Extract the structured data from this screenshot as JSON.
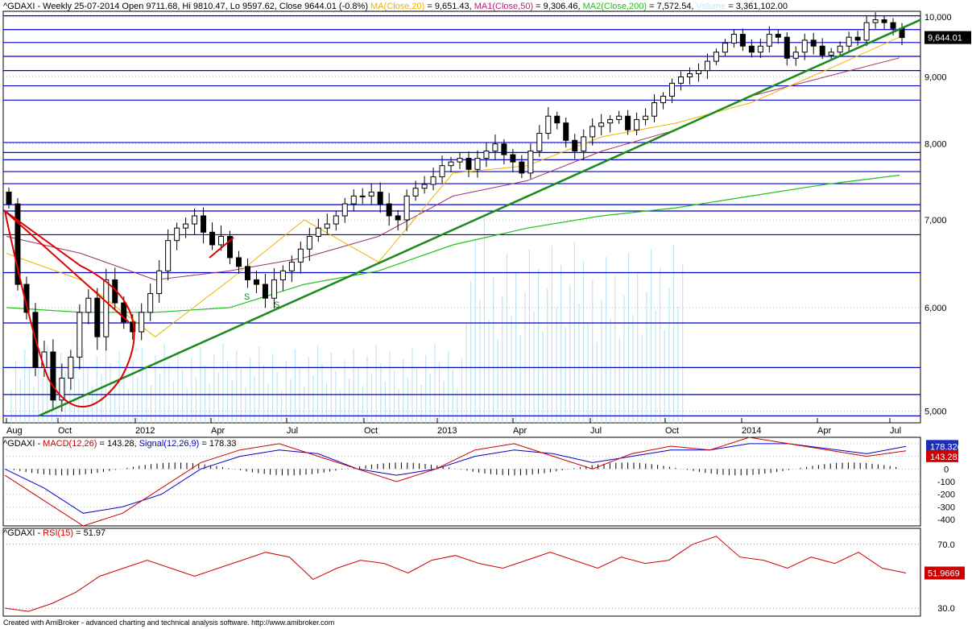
{
  "panels": {
    "price": {
      "header": [
        {
          "text": "^GDAXI - Weekly 25-07-2014 Open 9711.68, Hi 9810.47, Lo 9597.62, Close 9644.01 (-0.8%) ",
          "color": "#000000"
        },
        {
          "text": "MA(Close,20)",
          "color": "#f0b400"
        },
        {
          "text": " = 9,651.43, ",
          "color": "#000000"
        },
        {
          "text": "MA1(Close,50)",
          "color": "#b0286e"
        },
        {
          "text": " = 9,306.46, ",
          "color": "#000000"
        },
        {
          "text": "MA2(Close,200)",
          "color": "#1fbf1f"
        },
        {
          "text": " = 7,572.54, ",
          "color": "#000000"
        },
        {
          "text": "Volume",
          "color": "#c8e6f0"
        },
        {
          "text": " = 3,361,102.00",
          "color": "#000000"
        }
      ],
      "last_price_label": "9,644.01",
      "y_ticks": [
        "10,000",
        "9,000",
        "8,000",
        "7,000",
        "6,000",
        "5,000"
      ]
    },
    "macd": {
      "header": [
        {
          "text": "^GDAXI - ",
          "color": "#000000"
        },
        {
          "text": "MACD(12,26)",
          "color": "#cc0000"
        },
        {
          "text": " = 143.28, ",
          "color": "#000000"
        },
        {
          "text": "Signal(12,26,9)",
          "color": "#0000cc"
        },
        {
          "text": " = 178.33",
          "color": "#000000"
        }
      ],
      "label_signal": "178.326",
      "label_macd": "143.281",
      "y_ticks": [
        "200",
        "100",
        "0",
        "-100",
        "-200",
        "-300",
        "-400"
      ]
    },
    "rsi": {
      "header": [
        {
          "text": "^GDAXI - ",
          "color": "#000000"
        },
        {
          "text": "RSI(15)",
          "color": "#cc0000"
        },
        {
          "text": " = 51.97",
          "color": "#000000"
        }
      ],
      "label_rsi": "51.9669",
      "y_ticks": [
        "70.0",
        "30.0"
      ]
    }
  },
  "x_axis_labels": [
    "Aug",
    "Oct",
    "2012",
    "Apr",
    "Jul",
    "Oct",
    "2013",
    "Apr",
    "Jul",
    "Oct",
    "2014",
    "Apr",
    "Jul"
  ],
  "footer": "Created with AmiBroker - advanced charting and technical analysis software. http://www.amibroker.com",
  "chart_data": [
    {
      "type": "candlestick",
      "title": "^GDAXI - Weekly",
      "ylim": [
        4900,
        10100
      ],
      "x_range": [
        "2011-08",
        "2014-07"
      ],
      "grid": "dotted",
      "series": [
        {
          "name": "Close",
          "values": [
            7200,
            6250,
            5950,
            5400,
            5550,
            5100,
            5300,
            5500,
            5950,
            6100,
            5700,
            6300,
            6050,
            5850,
            5750,
            5950,
            6150,
            6400,
            6750,
            6900,
            6950,
            7050,
            6850,
            6700,
            6800,
            6550,
            6450,
            6300,
            6250,
            6100,
            6300,
            6400,
            6500,
            6650,
            6800,
            6900,
            6950,
            7050,
            7200,
            7300,
            7300,
            7350,
            7200,
            7050,
            7000,
            7300,
            7400,
            7450,
            7550,
            7700,
            7750,
            7800,
            7650,
            7800,
            7900,
            8000,
            7850,
            7750,
            7600,
            7900,
            8150,
            8400,
            8300,
            8050,
            7900,
            8100,
            8250,
            8300,
            8350,
            8400,
            8200,
            8350,
            8400,
            8600,
            8700,
            8900,
            9000,
            9050,
            9100,
            9250,
            9400,
            9550,
            9700,
            9500,
            9400,
            9500,
            9700,
            9650,
            9300,
            9400,
            9600,
            9500,
            9350,
            9400,
            9500,
            9650,
            9600,
            9900,
            9950,
            9900,
            9800,
            9644
          ]
        },
        {
          "name": "MA(Close,20)",
          "values": [
            6600,
            6300,
            5700,
            6300,
            7000,
            6500,
            7600,
            7700,
            8100,
            8300,
            8600,
            9100,
            9651
          ]
        },
        {
          "name": "MA1(Close,50)",
          "values": [
            6800,
            6600,
            6300,
            6400,
            6550,
            6800,
            7300,
            7500,
            7900,
            8200,
            8700,
            9000,
            9306
          ]
        },
        {
          "name": "MA2(Close,200)",
          "values": [
            6000,
            5950,
            5950,
            6000,
            6250,
            6400,
            6700,
            6900,
            7050,
            7150,
            7300,
            7450,
            7572
          ]
        }
      ],
      "horizontal_levels": [
        10020,
        9780,
        9560,
        9330,
        9100,
        8860,
        8640,
        8020,
        7880,
        7780,
        7620,
        7460,
        7190,
        7110,
        6820,
        6380,
        5840,
        5400,
        5150,
        4960
      ],
      "annotations": [
        "S",
        "S"
      ]
    },
    {
      "type": "line",
      "title": "MACD",
      "ylim": [
        -450,
        250
      ],
      "series": [
        {
          "name": "MACD(12,26)",
          "values": [
            -50,
            -250,
            -450,
            -350,
            -150,
            50,
            150,
            200,
            100,
            0,
            -100,
            0,
            150,
            200,
            100,
            0,
            120,
            180,
            150,
            250,
            200,
            150,
            100,
            143
          ]
        },
        {
          "name": "Signal(12,26,9)",
          "values": [
            0,
            -150,
            -350,
            -300,
            -200,
            0,
            100,
            150,
            120,
            0,
            -50,
            0,
            100,
            150,
            120,
            50,
            100,
            150,
            150,
            200,
            200,
            160,
            120,
            178
          ]
        }
      ]
    },
    {
      "type": "line",
      "title": "RSI",
      "ylim": [
        25,
        80
      ],
      "series": [
        {
          "name": "RSI(15)",
          "values": [
            30,
            28,
            33,
            40,
            50,
            55,
            60,
            55,
            50,
            55,
            60,
            65,
            62,
            48,
            55,
            60,
            58,
            52,
            60,
            63,
            58,
            55,
            60,
            65,
            60,
            55,
            62,
            58,
            60,
            70,
            75,
            62,
            60,
            55,
            62,
            58,
            65,
            55,
            52
          ]
        }
      ]
    }
  ]
}
